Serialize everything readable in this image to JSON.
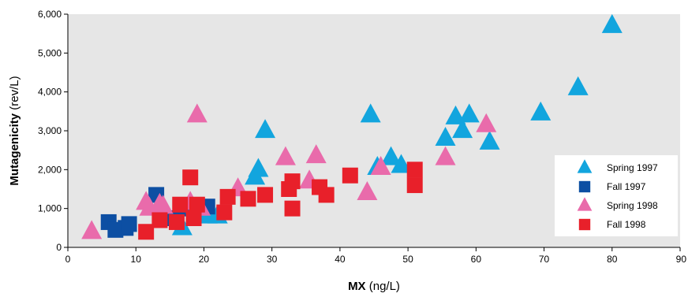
{
  "chart_data": {
    "type": "scatter",
    "xlabel_bold": "MX",
    "xlabel_unit": " (ng/L)",
    "ylabel_bold": "Mutagenicity",
    "ylabel_unit": " (rev/L)",
    "xlim": [
      0,
      90
    ],
    "ylim": [
      0,
      6000
    ],
    "x_ticks": [
      "0",
      "10",
      "20",
      "30",
      "40",
      "50",
      "60",
      "70",
      "80",
      "90"
    ],
    "y_ticks": [
      "0",
      "1,000",
      "2,000",
      "3,000",
      "4,000",
      "5,000",
      "6,000"
    ],
    "grid": false,
    "legend_position": "right",
    "colors": {
      "plot_background": "#e6e6e6",
      "legend_background": "#ffffff"
    },
    "series": [
      {
        "name": "Spring 1997",
        "marker": "triangle",
        "color": "#12a5de",
        "points": [
          [
            16.8,
            500
          ],
          [
            20.5,
            800
          ],
          [
            22.0,
            800
          ],
          [
            27.5,
            1800
          ],
          [
            28.0,
            2000
          ],
          [
            29.0,
            3000
          ],
          [
            44.5,
            3400
          ],
          [
            45.5,
            2050
          ],
          [
            47.5,
            2300
          ],
          [
            49.0,
            2100
          ],
          [
            55.5,
            2800
          ],
          [
            57.0,
            3350
          ],
          [
            58.0,
            3000
          ],
          [
            59.0,
            3400
          ],
          [
            62.0,
            2700
          ],
          [
            69.5,
            3450
          ],
          [
            75.0,
            4100
          ],
          [
            80.0,
            5700
          ]
        ]
      },
      {
        "name": "Fall 1997",
        "marker": "square",
        "color": "#0d4fa3",
        "points": [
          [
            6.0,
            650
          ],
          [
            7.0,
            450
          ],
          [
            8.5,
            500
          ],
          [
            9.0,
            600
          ],
          [
            13.0,
            1350
          ],
          [
            15.5,
            750
          ],
          [
            17.5,
            1000
          ],
          [
            20.5,
            1050
          ]
        ]
      },
      {
        "name": "Spring 1998",
        "marker": "triangle",
        "color": "#e96bab",
        "points": [
          [
            3.5,
            400
          ],
          [
            11.5,
            1150
          ],
          [
            12.0,
            1000
          ],
          [
            13.5,
            1100
          ],
          [
            14.0,
            1050
          ],
          [
            18.0,
            1150
          ],
          [
            19.0,
            3400
          ],
          [
            19.5,
            1000
          ],
          [
            25.0,
            1500
          ],
          [
            32.0,
            2300
          ],
          [
            35.5,
            1700
          ],
          [
            36.5,
            2350
          ],
          [
            44.0,
            1400
          ],
          [
            46.0,
            2050
          ],
          [
            55.5,
            2300
          ],
          [
            61.5,
            3150
          ]
        ]
      },
      {
        "name": "Fall 1998",
        "marker": "square",
        "color": "#e8202a",
        "points": [
          [
            11.5,
            400
          ],
          [
            13.5,
            700
          ],
          [
            16.0,
            650
          ],
          [
            16.5,
            1100
          ],
          [
            18.0,
            1800
          ],
          [
            18.5,
            750
          ],
          [
            19.0,
            1100
          ],
          [
            23.0,
            900
          ],
          [
            23.5,
            1300
          ],
          [
            26.5,
            1250
          ],
          [
            29.0,
            1350
          ],
          [
            32.5,
            1500
          ],
          [
            33.0,
            1000
          ],
          [
            33.0,
            1700
          ],
          [
            37.0,
            1550
          ],
          [
            38.0,
            1350
          ],
          [
            41.5,
            1850
          ],
          [
            51.0,
            2000
          ],
          [
            51.0,
            1600
          ]
        ]
      }
    ]
  }
}
